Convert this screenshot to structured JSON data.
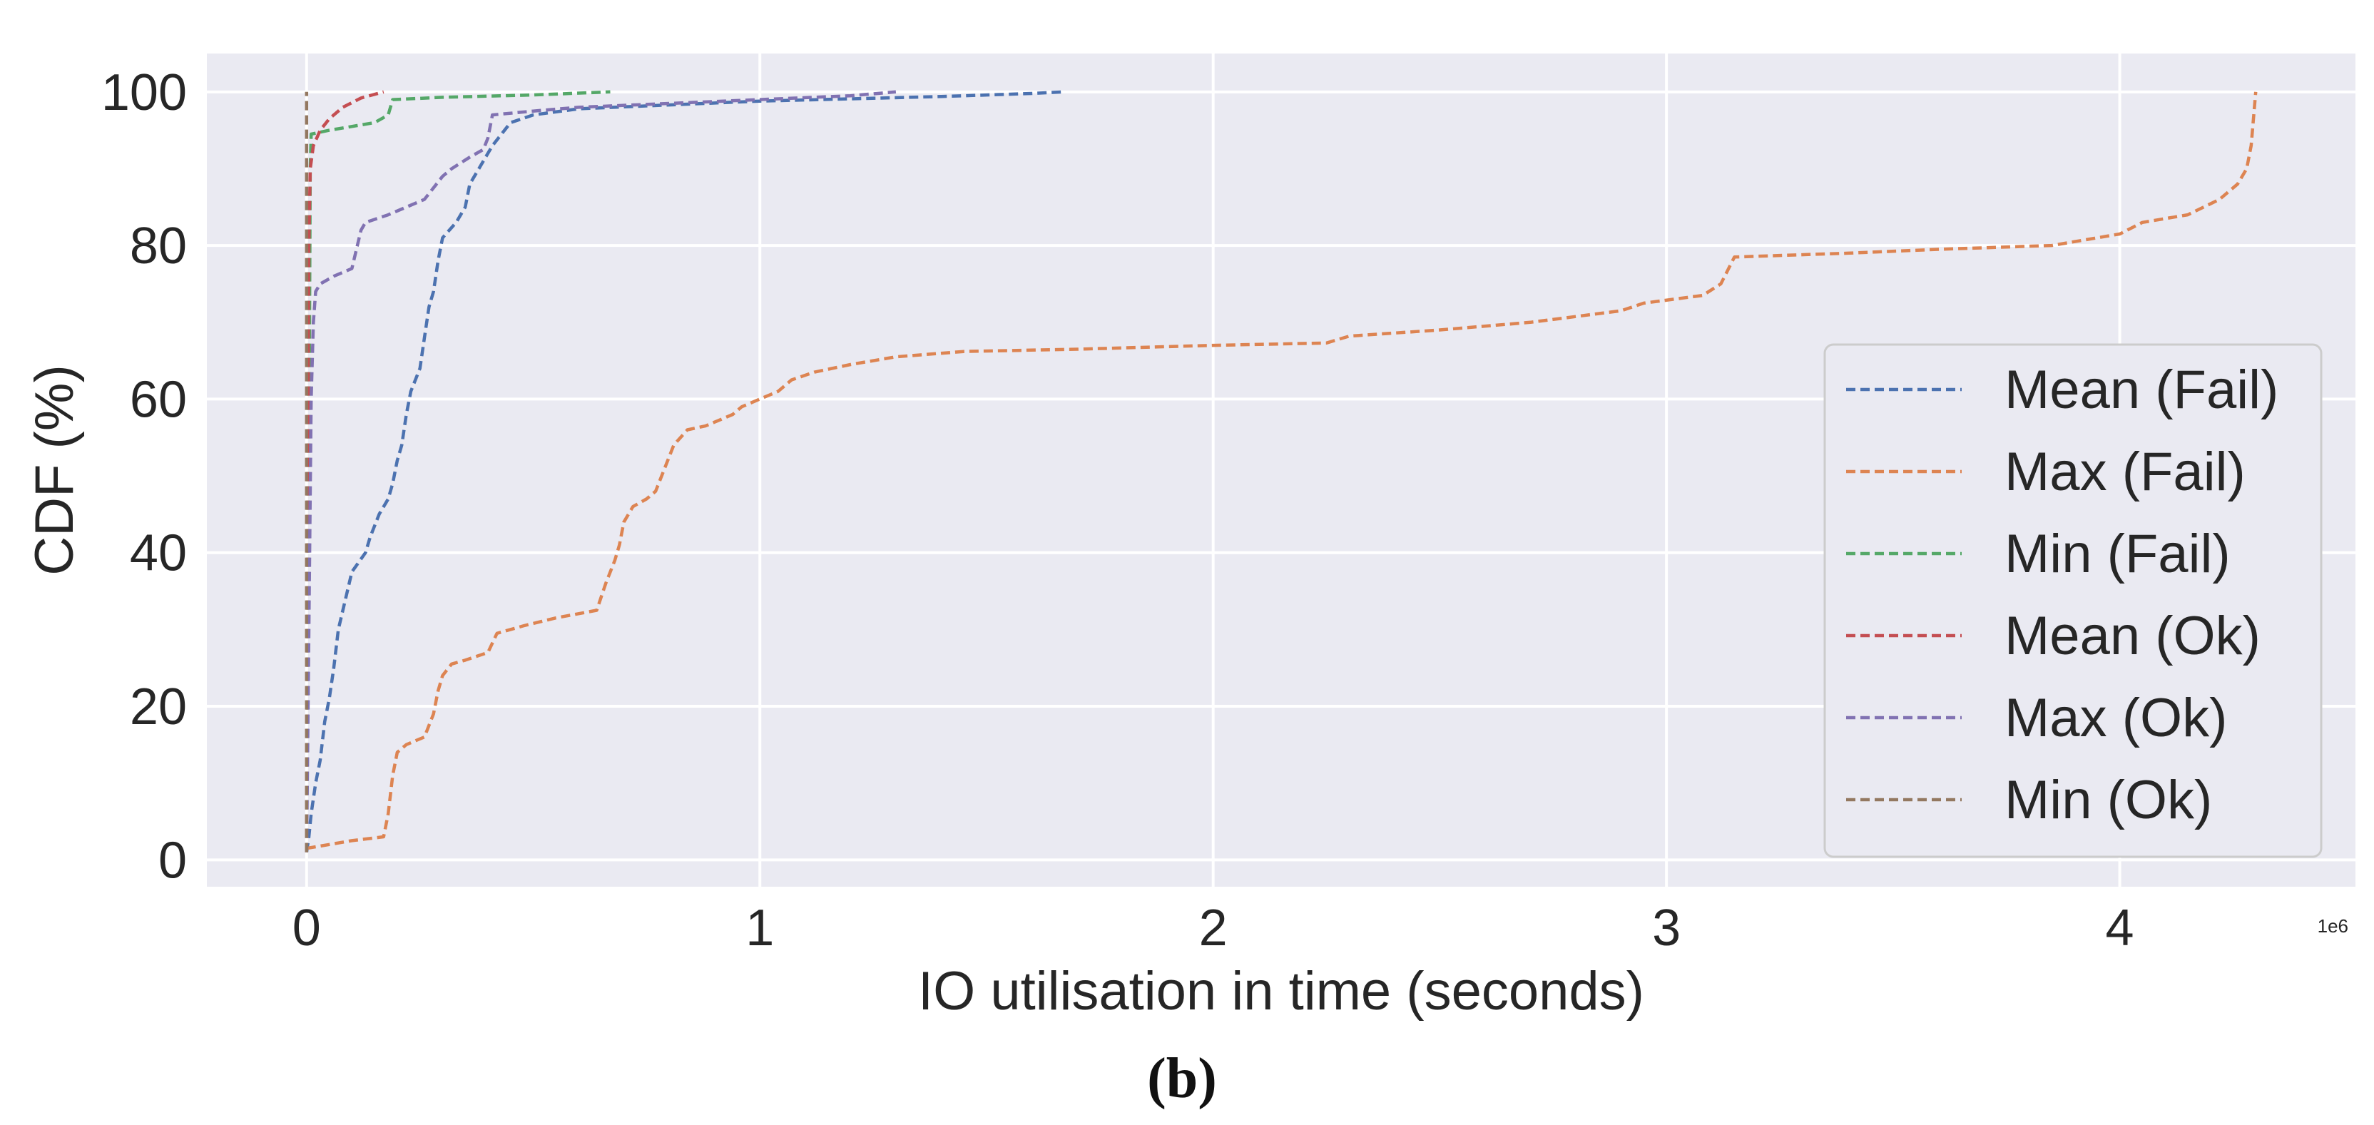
{
  "chart_data": {
    "type": "line",
    "title": "",
    "xlabel": "IO utilisation in time (seconds)",
    "ylabel": "CDF (%)",
    "x_offset_label": "1e6",
    "xlim": [
      -0.22,
      4.52
    ],
    "ylim": [
      -3.5,
      105
    ],
    "x_ticks": [
      0,
      1,
      2,
      3,
      4
    ],
    "x_tick_labels": [
      "0",
      "1",
      "2",
      "3",
      "4"
    ],
    "y_ticks": [
      0,
      20,
      40,
      60,
      80,
      100
    ],
    "y_tick_labels": [
      "0",
      "20",
      "40",
      "60",
      "80",
      "100"
    ],
    "grid": true,
    "legend_position": "lower-right",
    "caption": "(b)",
    "series": [
      {
        "name": "Mean (Fail)",
        "color": "#4c72b0",
        "points": [
          [
            0.0,
            1
          ],
          [
            0.005,
            3
          ],
          [
            0.01,
            6
          ],
          [
            0.02,
            10
          ],
          [
            0.03,
            13
          ],
          [
            0.04,
            18
          ],
          [
            0.05,
            21
          ],
          [
            0.06,
            25
          ],
          [
            0.07,
            30
          ],
          [
            0.09,
            35
          ],
          [
            0.1,
            37.5
          ],
          [
            0.13,
            40
          ],
          [
            0.14,
            42
          ],
          [
            0.16,
            45
          ],
          [
            0.18,
            47
          ],
          [
            0.19,
            49
          ],
          [
            0.2,
            52
          ],
          [
            0.21,
            54
          ],
          [
            0.22,
            58
          ],
          [
            0.23,
            61
          ],
          [
            0.25,
            64
          ],
          [
            0.26,
            68
          ],
          [
            0.27,
            72
          ],
          [
            0.28,
            74
          ],
          [
            0.29,
            78
          ],
          [
            0.3,
            81
          ],
          [
            0.33,
            83
          ],
          [
            0.35,
            85
          ],
          [
            0.36,
            88
          ],
          [
            0.38,
            90
          ],
          [
            0.39,
            91
          ],
          [
            0.4,
            92
          ],
          [
            0.41,
            93
          ],
          [
            0.45,
            96
          ],
          [
            0.5,
            97
          ],
          [
            0.6,
            97.8
          ],
          [
            0.8,
            98.3
          ],
          [
            1.0,
            98.8
          ],
          [
            1.2,
            99.1
          ],
          [
            1.4,
            99.4
          ],
          [
            1.6,
            99.8
          ],
          [
            1.67,
            100
          ]
        ]
      },
      {
        "name": "Max (Fail)",
        "color": "#dd8452",
        "points": [
          [
            0.0,
            1.5
          ],
          [
            0.05,
            2
          ],
          [
            0.1,
            2.5
          ],
          [
            0.17,
            3
          ],
          [
            0.18,
            6
          ],
          [
            0.19,
            11
          ],
          [
            0.2,
            14
          ],
          [
            0.22,
            15
          ],
          [
            0.26,
            16
          ],
          [
            0.28,
            19
          ],
          [
            0.29,
            22
          ],
          [
            0.3,
            24
          ],
          [
            0.32,
            25.5
          ],
          [
            0.35,
            26
          ],
          [
            0.4,
            27
          ],
          [
            0.42,
            29.5
          ],
          [
            0.48,
            30.5
          ],
          [
            0.55,
            31.5
          ],
          [
            0.64,
            32.5
          ],
          [
            0.66,
            36
          ],
          [
            0.68,
            39
          ],
          [
            0.69,
            41
          ],
          [
            0.7,
            44
          ],
          [
            0.72,
            46
          ],
          [
            0.75,
            47
          ],
          [
            0.77,
            48
          ],
          [
            0.79,
            51
          ],
          [
            0.81,
            54
          ],
          [
            0.84,
            56
          ],
          [
            0.88,
            56.5
          ],
          [
            0.94,
            58
          ],
          [
            0.96,
            59
          ],
          [
            1.0,
            60
          ],
          [
            1.04,
            61
          ],
          [
            1.07,
            62.5
          ],
          [
            1.12,
            63.5
          ],
          [
            1.2,
            64.5
          ],
          [
            1.3,
            65.5
          ],
          [
            1.45,
            66.2
          ],
          [
            1.7,
            66.5
          ],
          [
            2.0,
            67
          ],
          [
            2.25,
            67.3
          ],
          [
            2.3,
            68.2
          ],
          [
            2.5,
            69
          ],
          [
            2.7,
            70
          ],
          [
            2.9,
            71.5
          ],
          [
            2.95,
            72.5
          ],
          [
            3.08,
            73.5
          ],
          [
            3.12,
            75
          ],
          [
            3.15,
            78.5
          ],
          [
            3.4,
            79
          ],
          [
            3.6,
            79.5
          ],
          [
            3.85,
            80
          ],
          [
            4.0,
            81.5
          ],
          [
            4.05,
            83
          ],
          [
            4.15,
            84
          ],
          [
            4.22,
            86
          ],
          [
            4.26,
            88
          ],
          [
            4.28,
            90
          ],
          [
            4.29,
            93
          ],
          [
            4.3,
            100
          ]
        ]
      },
      {
        "name": "Min (Fail)",
        "color": "#55a868",
        "points": [
          [
            0.0,
            1
          ],
          [
            0.005,
            50
          ],
          [
            0.008,
            90
          ],
          [
            0.01,
            94.5
          ],
          [
            0.05,
            95
          ],
          [
            0.15,
            96
          ],
          [
            0.18,
            97
          ],
          [
            0.19,
            99
          ],
          [
            0.3,
            99.3
          ],
          [
            0.5,
            99.6
          ],
          [
            0.67,
            100
          ]
        ]
      },
      {
        "name": "Mean (Ok)",
        "color": "#c44e52",
        "points": [
          [
            0.0,
            1
          ],
          [
            0.002,
            40
          ],
          [
            0.005,
            80
          ],
          [
            0.008,
            90
          ],
          [
            0.015,
            93
          ],
          [
            0.03,
            95
          ],
          [
            0.05,
            96.5
          ],
          [
            0.08,
            98
          ],
          [
            0.12,
            99.2
          ],
          [
            0.17,
            100
          ]
        ]
      },
      {
        "name": "Max (Ok)",
        "color": "#8172b2",
        "points": [
          [
            0.0,
            1
          ],
          [
            0.005,
            30
          ],
          [
            0.01,
            60
          ],
          [
            0.015,
            70
          ],
          [
            0.02,
            74
          ],
          [
            0.03,
            75
          ],
          [
            0.06,
            76
          ],
          [
            0.1,
            77
          ],
          [
            0.12,
            82
          ],
          [
            0.13,
            83
          ],
          [
            0.18,
            84
          ],
          [
            0.22,
            85
          ],
          [
            0.26,
            86
          ],
          [
            0.3,
            89
          ],
          [
            0.32,
            90
          ],
          [
            0.36,
            91.5
          ],
          [
            0.39,
            92.5
          ],
          [
            0.4,
            94
          ],
          [
            0.41,
            97
          ],
          [
            0.5,
            97.5
          ],
          [
            0.6,
            98
          ],
          [
            0.8,
            98.5
          ],
          [
            1.0,
            99
          ],
          [
            1.2,
            99.5
          ],
          [
            1.3,
            100
          ]
        ]
      },
      {
        "name": "Min (Ok)",
        "color": "#937860",
        "points": [
          [
            0.0,
            1
          ],
          [
            0.0,
            100
          ]
        ]
      }
    ]
  }
}
